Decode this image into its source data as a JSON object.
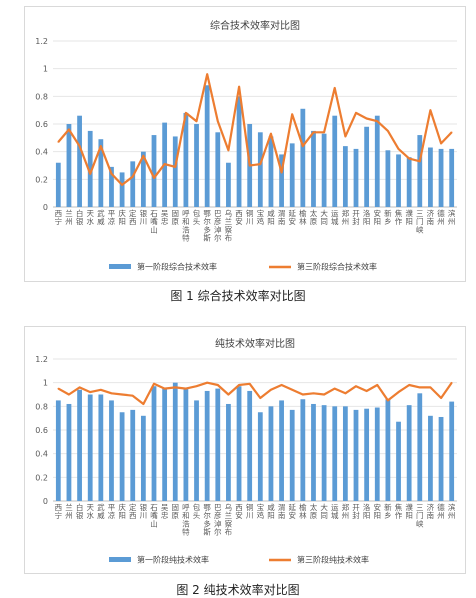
{
  "figures": [
    {
      "caption": "图 1  综合技术效率对比图",
      "chart_data": {
        "type": "bar",
        "title": "综合技术效率对比图",
        "xlabel": "",
        "ylabel": "",
        "ylim": [
          0,
          1.2
        ],
        "yticks": [
          "0",
          "0.2",
          "0.4",
          "0.6",
          "0.8",
          "1",
          "1.2"
        ],
        "categories": [
          "西宁",
          "兰州",
          "白银",
          "天水",
          "武威",
          "平凉",
          "庆阳",
          "定西",
          "银川",
          "石嘴山",
          "吴忠",
          "固原",
          "呼和浩特",
          "包头",
          "鄂尔多斯",
          "巴彦淖尔",
          "乌兰察布",
          "西安",
          "铜川",
          "宝鸡",
          "咸阳",
          "渭南",
          "延安",
          "榆林",
          "太原",
          "大同",
          "运城",
          "郑州",
          "开封",
          "洛阳",
          "安阳",
          "新乡",
          "焦作",
          "濮阳",
          "三门峡",
          "济南",
          "德州",
          "滨州"
        ],
        "grid": true,
        "legend": "bottom",
        "series": [
          {
            "name": "第一阶段综合技术效率",
            "type": "bar",
            "color": "#5b9bd5",
            "values": [
              0.32,
              0.6,
              0.66,
              0.55,
              0.49,
              0.29,
              0.25,
              0.33,
              0.4,
              0.52,
              0.61,
              0.51,
              0.68,
              0.6,
              0.88,
              0.54,
              0.32,
              0.8,
              0.6,
              0.54,
              0.51,
              0.38,
              0.46,
              0.71,
              0.55,
              0.53,
              0.66,
              0.44,
              0.42,
              0.58,
              0.66,
              0.41,
              0.38,
              0.36,
              0.52,
              0.43,
              0.42,
              0.42
            ]
          },
          {
            "name": "第三阶段综合技术效率",
            "type": "line",
            "color": "#ed7d31",
            "values": [
              0.47,
              0.56,
              0.44,
              0.24,
              0.44,
              0.24,
              0.16,
              0.22,
              0.37,
              0.21,
              0.31,
              0.29,
              0.68,
              0.62,
              0.96,
              0.62,
              0.41,
              0.87,
              0.3,
              0.31,
              0.53,
              0.25,
              0.67,
              0.44,
              0.54,
              0.54,
              0.86,
              0.51,
              0.68,
              0.64,
              0.62,
              0.55,
              0.42,
              0.35,
              0.33,
              0.7,
              0.46,
              0.54
            ]
          }
        ]
      }
    },
    {
      "caption": "图 2  纯技术效率对比图",
      "chart_data": {
        "type": "bar",
        "title": "纯技术效率对比图",
        "xlabel": "",
        "ylabel": "",
        "ylim": [
          0,
          1.2
        ],
        "yticks": [
          "0",
          "0.2",
          "0.4",
          "0.6",
          "0.8",
          "1",
          "1.2"
        ],
        "categories": [
          "西宁",
          "兰州",
          "白银",
          "天水",
          "武威",
          "平凉",
          "庆阳",
          "定西",
          "银川",
          "石嘴山",
          "吴忠",
          "固原",
          "呼和浩特",
          "包头",
          "鄂尔多斯",
          "巴彦淖尔",
          "乌兰察布",
          "西安",
          "铜川",
          "宝鸡",
          "咸阳",
          "渭南",
          "延安",
          "榆林",
          "太原",
          "大同",
          "运城",
          "郑州",
          "开封",
          "洛阳",
          "安阳",
          "新乡",
          "焦作",
          "濮阳",
          "三门峡",
          "济南",
          "德州",
          "滨州"
        ],
        "grid": true,
        "legend": "bottom",
        "series": [
          {
            "name": "第一阶段纯技术效率",
            "type": "bar",
            "color": "#5b9bd5",
            "values": [
              0.85,
              0.82,
              0.94,
              0.9,
              0.9,
              0.85,
              0.75,
              0.77,
              0.72,
              0.97,
              0.95,
              1.0,
              0.95,
              0.85,
              0.93,
              0.95,
              0.82,
              0.97,
              0.93,
              0.75,
              0.8,
              0.85,
              0.77,
              0.86,
              0.82,
              0.81,
              0.8,
              0.8,
              0.77,
              0.78,
              0.79,
              0.86,
              0.67,
              0.81,
              0.91,
              0.72,
              0.71,
              0.84
            ]
          },
          {
            "name": "第三阶段纯技术效率",
            "type": "line",
            "color": "#ed7d31",
            "values": [
              0.95,
              0.9,
              0.96,
              0.92,
              0.94,
              0.91,
              0.9,
              0.89,
              0.82,
              0.99,
              0.95,
              0.96,
              0.95,
              0.97,
              1.0,
              0.98,
              0.9,
              0.98,
              0.99,
              0.87,
              0.94,
              0.98,
              0.94,
              0.9,
              0.91,
              0.9,
              0.95,
              0.91,
              0.97,
              0.93,
              0.98,
              0.85,
              0.92,
              0.98,
              0.96,
              0.96,
              0.87,
              1.0
            ]
          }
        ]
      }
    }
  ]
}
